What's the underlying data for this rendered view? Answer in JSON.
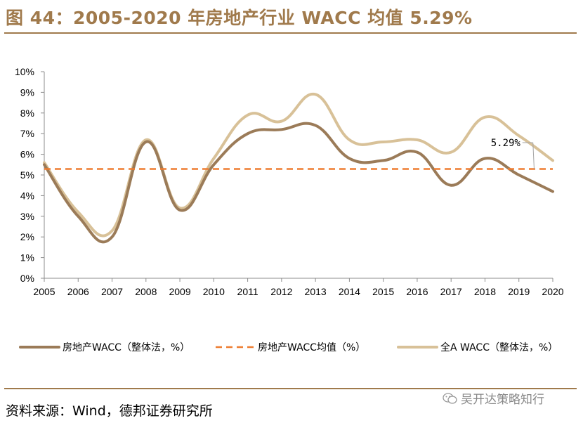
{
  "header": {
    "title": "图 44：2005-2020 年房地产行业 WACC 均值 5.29%"
  },
  "chart_data": {
    "type": "line",
    "title": "2005-2020 年房地产行业 WACC 均值 5.29%",
    "xlabel": "",
    "ylabel": "",
    "categories": [
      "2005",
      "2006",
      "2007",
      "2008",
      "2009",
      "2010",
      "2011",
      "2012",
      "2013",
      "2014",
      "2015",
      "2016",
      "2017",
      "2018",
      "2019",
      "2020"
    ],
    "ylim": [
      0,
      10
    ],
    "yticks": [
      "0%",
      "1%",
      "2%",
      "3%",
      "4%",
      "5%",
      "6%",
      "7%",
      "8%",
      "9%",
      "10%"
    ],
    "legend_position": "bottom",
    "series": [
      {
        "name": "房地产WACC（整体法，%）",
        "color": "#9b7b58",
        "style": "solid",
        "values": [
          5.5,
          3.0,
          2.0,
          6.6,
          3.3,
          5.5,
          7.0,
          7.2,
          7.4,
          5.8,
          5.7,
          6.1,
          4.5,
          5.8,
          5.0,
          4.2
        ]
      },
      {
        "name": "房地产WACC均值（%）",
        "color": "#ee7d31",
        "style": "dashed",
        "values": [
          5.29,
          5.29,
          5.29,
          5.29,
          5.29,
          5.29,
          5.29,
          5.29,
          5.29,
          5.29,
          5.29,
          5.29,
          5.29,
          5.29,
          5.29,
          5.29
        ]
      },
      {
        "name": "全A WACC（整体法，%）",
        "color": "#d8c198",
        "style": "solid",
        "values": [
          5.6,
          3.2,
          2.3,
          6.7,
          3.4,
          5.8,
          7.9,
          7.6,
          8.9,
          6.7,
          6.6,
          6.7,
          6.1,
          7.8,
          6.9,
          5.7
        ]
      }
    ],
    "annotations": [
      {
        "text": "5.29%",
        "x": "2019",
        "y": 6.6
      }
    ]
  },
  "footer": {
    "source": "资料来源：Wind，德邦证券研究所",
    "watermark": "吴开达策略知行"
  }
}
